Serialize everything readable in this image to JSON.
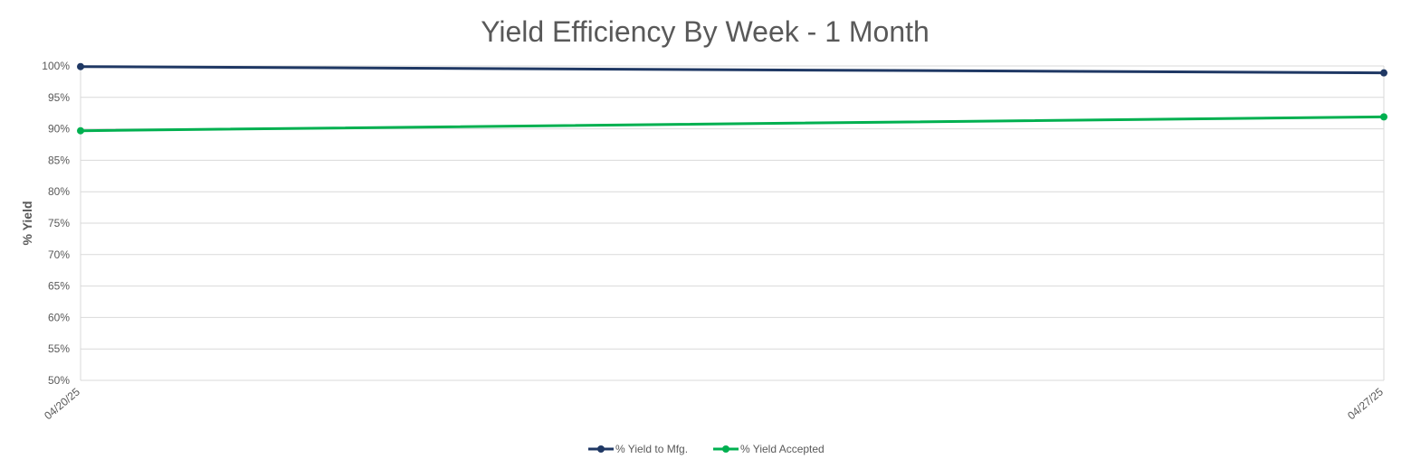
{
  "chart_data": {
    "type": "line",
    "title": "Yield Efficiency By Week - 1 Month",
    "xlabel": "",
    "ylabel": "% Yield",
    "categories": [
      "04/20/25",
      "04/27/25"
    ],
    "ylim": [
      0.5,
      1.0
    ],
    "yticks": [
      "50%",
      "55%",
      "60%",
      "65%",
      "70%",
      "75%",
      "80%",
      "85%",
      "90%",
      "95%",
      "100%"
    ],
    "grid": true,
    "legend_position": "bottom",
    "series": [
      {
        "name": "% Yield to Mfg.",
        "color": "#1f3864",
        "values": [
          0.999,
          0.989
        ]
      },
      {
        "name": "% Yield Accepted",
        "color": "#00b050",
        "values": [
          0.897,
          0.919
        ]
      }
    ]
  }
}
